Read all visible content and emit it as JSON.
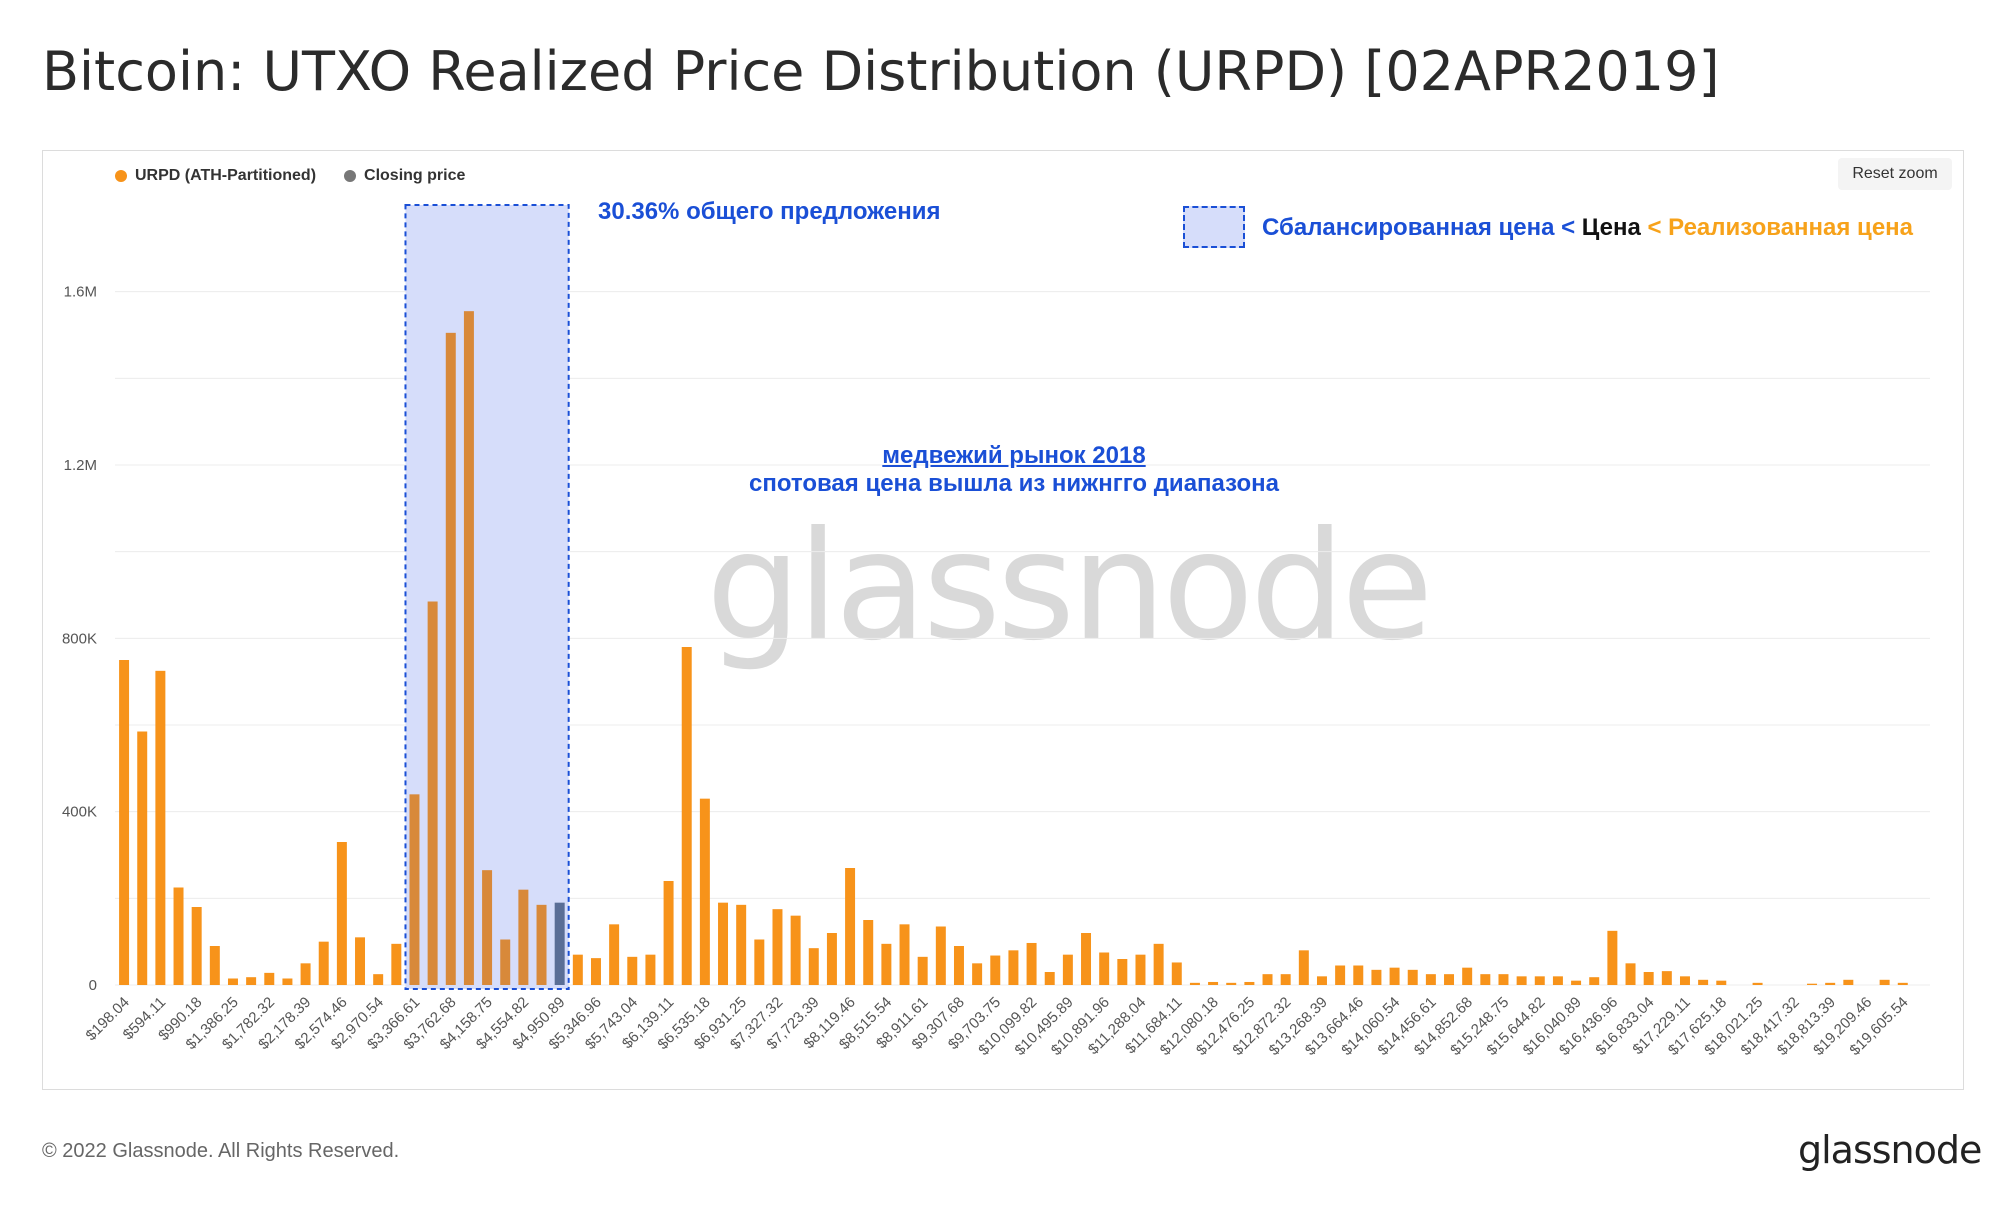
{
  "title": "Bitcoin: UTXO Realized Price Distribution (URPD) [02APR2019]",
  "reset_zoom_label": "Reset zoom",
  "legend": [
    {
      "label": "URPD (ATH-Partitioned)",
      "color": "#f7931a"
    },
    {
      "label": "Closing price",
      "color": "#777777"
    }
  ],
  "annotations": {
    "percent": "30.36%  общего предложения",
    "legend_part1": "Сбалансированная цена < ",
    "legend_part2": "Цена",
    "legend_part3": " < Реализованная цена",
    "bear_line1": "медвежий рынок 2018",
    "bear_line2": "спотовая цена вышла из нижнгго диапазона"
  },
  "colors": {
    "bar": "#f7931a",
    "closing_bar": "#5a6e96",
    "highlight_fill": "#d6ddfa",
    "highlight_border": "#1a4fd6",
    "text_blue": "#1a4fd6",
    "text_orange": "#f7a21a"
  },
  "watermark": "glassnode",
  "footer": {
    "copyright": "© 2022 Glassnode. All Rights Reserved.",
    "logo": "glassnode"
  },
  "chart_data": {
    "type": "bar",
    "ylim": [
      0,
      1800000
    ],
    "y_ticks": [
      {
        "value": 0,
        "label": "0"
      },
      {
        "value": 400000,
        "label": "400K"
      },
      {
        "value": 800000,
        "label": "800K"
      },
      {
        "value": 1200000,
        "label": "1.2M"
      },
      {
        "value": 1600000,
        "label": "1.6M"
      }
    ],
    "x_tick_labels": [
      "$198.04",
      "$594.11",
      "$990.18",
      "$1,386.25",
      "$1,782.32",
      "$2,178.39",
      "$2,574.46",
      "$2,970.54",
      "$3,366.61",
      "$3,762.68",
      "$4,158.75",
      "$4,554.82",
      "$4,950.89",
      "$5,346.96",
      "$5,743.04",
      "$6,139.11",
      "$6,535.18",
      "$6,931.25",
      "$7,327.32",
      "$7,723.39",
      "$8,119.46",
      "$8,515.54",
      "$8,911.61",
      "$9,307.68",
      "$9,703.75",
      "$10,099.82",
      "$10,495.89",
      "$10,891.96",
      "$11,288.04",
      "$11,684.11",
      "$12,080.18",
      "$12,476.25",
      "$12,872.32",
      "$13,268.39",
      "$13,664.46",
      "$14,060.54",
      "$14,456.61",
      "$14,852.68",
      "$15,248.75",
      "$15,644.82",
      "$16,040.89",
      "$16,436.96",
      "$16,833.04",
      "$17,229.11",
      "$17,625.18",
      "$18,021.25",
      "$18,417.32",
      "$18,813.39",
      "$19,209.46",
      "$19,605.54"
    ],
    "values": [
      750000,
      585000,
      725000,
      225000,
      180000,
      90000,
      15000,
      18000,
      28000,
      15000,
      50000,
      100000,
      330000,
      110000,
      25000,
      95000,
      440000,
      885000,
      1505000,
      1555000,
      265000,
      105000,
      220000,
      185000,
      190000,
      70000,
      62000,
      140000,
      65000,
      70000,
      240000,
      780000,
      430000,
      190000,
      185000,
      105000,
      175000,
      160000,
      85000,
      120000,
      270000,
      150000,
      95000,
      140000,
      65000,
      135000,
      90000,
      50000,
      68000,
      80000,
      97000,
      30000,
      70000,
      120000,
      75000,
      60000,
      70000,
      95000,
      52000,
      5000,
      7000,
      5000,
      7000,
      25000,
      25000,
      80000,
      20000,
      45000,
      45000,
      35000,
      40000,
      35000,
      25000,
      25000,
      40000,
      25000,
      25000,
      20000,
      20000,
      20000,
      10000,
      18000,
      125000,
      50000,
      30000,
      32000,
      20000,
      12000,
      10000,
      0,
      5000,
      0,
      0,
      3000,
      5000,
      12000,
      0,
      12000,
      5000,
      0
    ],
    "closing_index": 24,
    "highlight_range": [
      16,
      24
    ],
    "series": [
      {
        "name": "URPD (ATH-Partitioned)"
      }
    ]
  }
}
